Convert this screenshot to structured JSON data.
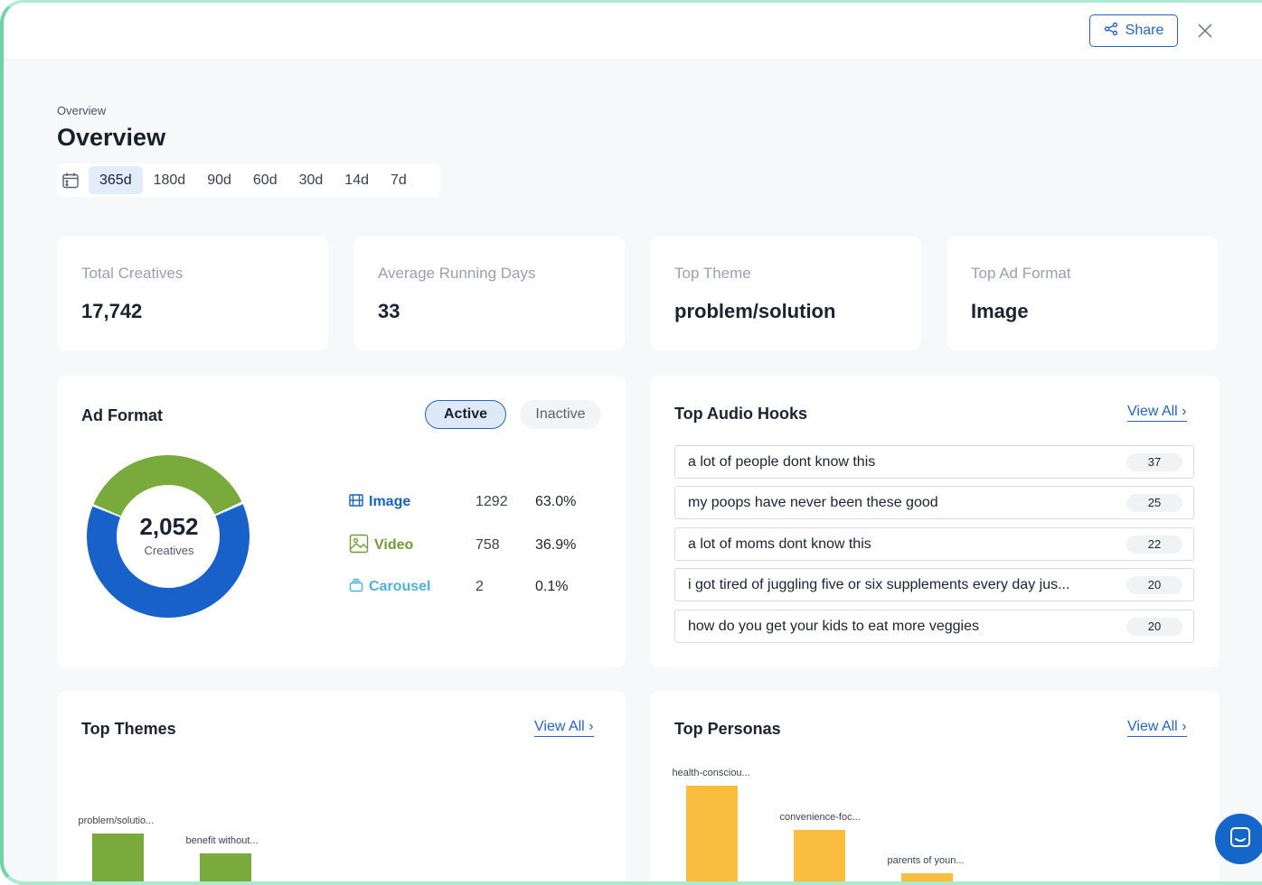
{
  "header": {
    "share_label": "Share"
  },
  "breadcrumb": "Overview",
  "page_title": "Overview",
  "ranges": [
    "365d",
    "180d",
    "90d",
    "60d",
    "30d",
    "14d",
    "7d"
  ],
  "active_range": "365d",
  "stats": [
    {
      "label": "Total Creatives",
      "value": "17,742"
    },
    {
      "label": "Average Running Days",
      "value": "33"
    },
    {
      "label": "Top Theme",
      "value": "problem/solution"
    },
    {
      "label": "Top Ad Format",
      "value": "Image"
    }
  ],
  "ad_format": {
    "title": "Ad Format",
    "toggle_active": "Active",
    "toggle_inactive": "Inactive",
    "total": "2,052",
    "total_label": "Creatives",
    "colors": {
      "image": "#1761c8",
      "video": "#7aa93c",
      "carousel": "#4fb3d9"
    },
    "rows": [
      {
        "name": "Image",
        "count": "1292",
        "pct": "63.0%"
      },
      {
        "name": "Video",
        "count": "758",
        "pct": "36.9%"
      },
      {
        "name": "Carousel",
        "count": "2",
        "pct": "0.1%"
      }
    ]
  },
  "audio_hooks": {
    "title": "Top Audio Hooks",
    "view_all": "View All",
    "items": [
      {
        "text": "a lot of people dont know this",
        "count": "37"
      },
      {
        "text": "my poops have never been these good",
        "count": "25"
      },
      {
        "text": "a lot of moms dont know this",
        "count": "22"
      },
      {
        "text": "i got tired of juggling five or six supplements every day jus...",
        "count": "20"
      },
      {
        "text": "how do you get your kids to eat more veggies",
        "count": "20"
      }
    ]
  },
  "themes": {
    "title": "Top Themes",
    "view_all": "View All",
    "bars": [
      {
        "label": "problem/solutio...",
        "value": 1.0
      },
      {
        "label": "benefit without...",
        "value": 0.6
      }
    ],
    "color": "#7aa93c"
  },
  "personas": {
    "title": "Top Personas",
    "view_all": "View All",
    "bars": [
      {
        "label": "health-consciou...",
        "value": 1.0
      },
      {
        "label": "convenience-foc...",
        "value": 0.55
      },
      {
        "label": "parents of youn...",
        "value": 0.1
      }
    ],
    "color": "#fbbd3e"
  }
}
